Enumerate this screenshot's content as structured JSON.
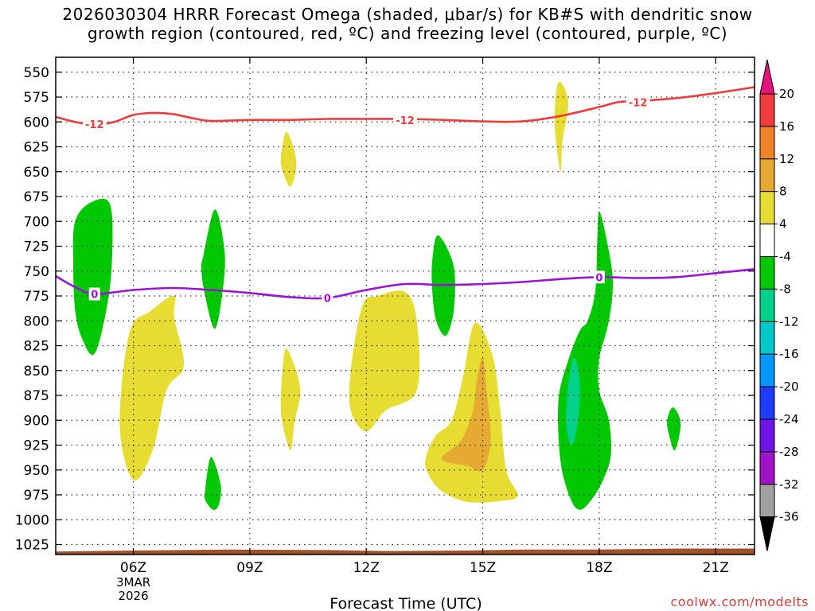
{
  "title": {
    "line1": "2026030304 HRRR Forecast Omega (shaded, μbar/s) for KB#S with dendritic snow",
    "line2": "growth region (contoured, red, ºC) and freezing level (contoured, purple, ºC)"
  },
  "credit": "coolwx.com/modelts",
  "colors": {
    "dgz": "#ee3b3b",
    "freezing": "#9b14d1",
    "terrain": "#a0522d",
    "grid": "#333333"
  },
  "chart_data": {
    "type": "heatmap",
    "title": "2026030304 HRRR Forecast Omega (shaded, μbar/s) for KB#S with dendritic snow growth region (contoured, red, ºC) and freezing level (contoured, purple, ºC)",
    "xlabel": "Forecast Time (UTC)",
    "ylabel": "",
    "x_range_hours": [
      4,
      22
    ],
    "y_range_hpa": [
      535,
      1035
    ],
    "y_ticks": [
      550,
      575,
      600,
      625,
      650,
      675,
      700,
      725,
      750,
      775,
      800,
      825,
      850,
      875,
      900,
      925,
      950,
      975,
      1000,
      1025
    ],
    "x_ticks": [
      {
        "hour": 6,
        "label": "06Z",
        "sub1": "3MAR",
        "sub2": "2026"
      },
      {
        "hour": 9,
        "label": "09Z"
      },
      {
        "hour": 12,
        "label": "12Z"
      },
      {
        "hour": 15,
        "label": "15Z"
      },
      {
        "hour": 18,
        "label": "18Z"
      },
      {
        "hour": 21,
        "label": "21Z"
      }
    ],
    "colorbar": {
      "levels": [
        20,
        16,
        12,
        8,
        4,
        -4,
        -8,
        -12,
        -16,
        -20,
        -24,
        -28,
        -32,
        -36
      ],
      "bin_colors": [
        "#f03c3c",
        "#f08228",
        "#e6aa32",
        "#e6dc32",
        "#ffffff",
        "#00c800",
        "#00d28c",
        "#00c8c8",
        "#0096ff",
        "#1e3cff",
        "#6e14e6",
        "#a014c8",
        "#a0a0a0"
      ],
      "top_arrow_color": "#e6147a",
      "bottom_arrow_color": "#000000"
    },
    "shading_colors": {
      "yellow": "#e6dc32",
      "orange": "#e6aa32",
      "green": "#00c800",
      "teal": "#00d28c"
    },
    "shaded_regions": [
      {
        "color": "green",
        "points": [
          [
            4.5,
            700
          ],
          [
            4.9,
            681
          ],
          [
            5.4,
            683
          ],
          [
            5.45,
            740
          ],
          [
            5.3,
            790
          ],
          [
            5.0,
            833
          ],
          [
            4.7,
            820
          ],
          [
            4.5,
            790
          ],
          [
            4.45,
            740
          ]
        ]
      },
      {
        "color": "green",
        "points": [
          [
            7.8,
            735
          ],
          [
            8.1,
            688
          ],
          [
            8.35,
            730
          ],
          [
            8.3,
            770
          ],
          [
            8.1,
            808
          ],
          [
            7.85,
            775
          ],
          [
            7.75,
            748
          ]
        ]
      },
      {
        "color": "green",
        "points": [
          [
            7.85,
            970
          ],
          [
            8.0,
            937
          ],
          [
            8.25,
            965
          ],
          [
            8.2,
            985
          ],
          [
            8.05,
            990
          ],
          [
            7.85,
            980
          ]
        ]
      },
      {
        "color": "green",
        "points": [
          [
            13.7,
            740
          ],
          [
            13.85,
            714
          ],
          [
            14.25,
            745
          ],
          [
            14.25,
            790
          ],
          [
            14.05,
            815
          ],
          [
            13.8,
            800
          ],
          [
            13.7,
            770
          ]
        ]
      },
      {
        "color": "green",
        "points": [
          [
            17.2,
            840
          ],
          [
            17.5,
            810
          ],
          [
            17.7,
            800
          ],
          [
            17.9,
            770
          ],
          [
            17.95,
            720
          ],
          [
            18.0,
            690
          ],
          [
            18.2,
            720
          ],
          [
            18.35,
            760
          ],
          [
            18.25,
            800
          ],
          [
            18.0,
            838
          ],
          [
            18.0,
            870
          ],
          [
            18.25,
            900
          ],
          [
            18.3,
            935
          ],
          [
            18.1,
            960
          ],
          [
            17.8,
            980
          ],
          [
            17.5,
            990
          ],
          [
            17.25,
            978
          ],
          [
            17.0,
            940
          ],
          [
            16.95,
            880
          ]
        ]
      },
      {
        "color": "green",
        "points": [
          [
            19.75,
            900
          ],
          [
            19.9,
            887
          ],
          [
            20.1,
            903
          ],
          [
            19.95,
            930
          ],
          [
            19.8,
            915
          ]
        ]
      },
      {
        "color": "teal",
        "points": [
          [
            17.2,
            865
          ],
          [
            17.35,
            837
          ],
          [
            17.5,
            862
          ],
          [
            17.45,
            900
          ],
          [
            17.3,
            925
          ],
          [
            17.15,
            905
          ]
        ]
      },
      {
        "color": "yellow",
        "points": [
          [
            5.9,
            812
          ],
          [
            6.45,
            790
          ],
          [
            7.05,
            775
          ],
          [
            7.05,
            797
          ],
          [
            7.3,
            845
          ],
          [
            6.85,
            870
          ],
          [
            6.5,
            930
          ],
          [
            6.0,
            960
          ],
          [
            5.65,
            905
          ]
        ]
      },
      {
        "color": "yellow",
        "points": [
          [
            9.8,
            635
          ],
          [
            9.95,
            610
          ],
          [
            10.2,
            640
          ],
          [
            10.05,
            665
          ],
          [
            9.85,
            650
          ]
        ]
      },
      {
        "color": "yellow",
        "points": [
          [
            9.8,
            880
          ],
          [
            9.9,
            830
          ],
          [
            10.1,
            840
          ],
          [
            10.3,
            870
          ],
          [
            10.15,
            902
          ],
          [
            10.05,
            930
          ],
          [
            9.85,
            905
          ]
        ]
      },
      {
        "color": "yellow",
        "points": [
          [
            11.6,
            850
          ],
          [
            11.9,
            785
          ],
          [
            12.3,
            775
          ],
          [
            13.0,
            771
          ],
          [
            13.3,
            800
          ],
          [
            13.3,
            870
          ],
          [
            12.5,
            890
          ],
          [
            12.0,
            911
          ],
          [
            11.6,
            890
          ]
        ]
      },
      {
        "color": "yellow",
        "points": [
          [
            13.55,
            935
          ],
          [
            13.8,
            915
          ],
          [
            14.2,
            900
          ],
          [
            14.5,
            855
          ],
          [
            14.8,
            802
          ],
          [
            15.25,
            835
          ],
          [
            15.45,
            890
          ],
          [
            15.6,
            950
          ],
          [
            15.9,
            975
          ],
          [
            15.5,
            981
          ],
          [
            14.6,
            982
          ],
          [
            13.9,
            970
          ],
          [
            13.55,
            950
          ]
        ]
      },
      {
        "color": "yellow",
        "points": [
          [
            16.85,
            600
          ],
          [
            16.95,
            560
          ],
          [
            17.2,
            580
          ],
          [
            17.05,
            620
          ],
          [
            17.0,
            650
          ]
        ]
      },
      {
        "color": "orange",
        "points": [
          [
            14.0,
            935
          ],
          [
            14.45,
            920
          ],
          [
            14.75,
            890
          ],
          [
            14.85,
            860
          ],
          [
            15.0,
            837
          ],
          [
            15.1,
            870
          ],
          [
            15.2,
            920
          ],
          [
            15.0,
            950
          ],
          [
            14.6,
            946
          ],
          [
            14.0,
            941
          ]
        ]
      }
    ],
    "terrain": {
      "color": "terrain",
      "points": [
        [
          4.0,
          1037
        ],
        [
          4.0,
          1032
        ],
        [
          6.0,
          1031
        ],
        [
          8.5,
          1030
        ],
        [
          11.0,
          1030.5
        ],
        [
          12.5,
          1031.5
        ],
        [
          14.5,
          1031
        ],
        [
          16.0,
          1030
        ],
        [
          18.0,
          1030
        ],
        [
          20.0,
          1029
        ],
        [
          22.0,
          1029
        ],
        [
          22.0,
          1037
        ]
      ]
    },
    "contours": [
      {
        "name": "dendritic-growth-minus12",
        "color": "dgz",
        "label": "-12",
        "label_positions": [
          [
            5.0,
            602
          ],
          [
            13.0,
            598
          ],
          [
            19.0,
            580
          ]
        ],
        "points": [
          [
            4.0,
            595
          ],
          [
            4.5,
            600
          ],
          [
            5.0,
            603
          ],
          [
            5.5,
            600
          ],
          [
            6.0,
            593
          ],
          [
            6.5,
            591
          ],
          [
            7.0,
            592
          ],
          [
            7.5,
            596
          ],
          [
            8.0,
            599
          ],
          [
            9.0,
            598
          ],
          [
            10.0,
            598
          ],
          [
            11.0,
            597
          ],
          [
            12.0,
            597
          ],
          [
            13.0,
            597
          ],
          [
            14.0,
            598
          ],
          [
            15.0,
            599.5
          ],
          [
            16.0,
            599.5
          ],
          [
            17.0,
            594
          ],
          [
            18.0,
            585
          ],
          [
            18.5,
            580
          ],
          [
            19.0,
            579
          ],
          [
            20.0,
            576
          ],
          [
            21.0,
            571
          ],
          [
            22.0,
            565
          ]
        ]
      },
      {
        "name": "freezing-level-0",
        "color": "freezing",
        "label": "0",
        "label_positions": [
          [
            5.0,
            773
          ],
          [
            11.0,
            777
          ],
          [
            18.0,
            756
          ]
        ],
        "points": [
          [
            4.0,
            755
          ],
          [
            4.5,
            766
          ],
          [
            5.0,
            773
          ],
          [
            6.0,
            769
          ],
          [
            7.0,
            767
          ],
          [
            8.0,
            769
          ],
          [
            9.0,
            772
          ],
          [
            10.0,
            776
          ],
          [
            11.0,
            777
          ],
          [
            12.0,
            769
          ],
          [
            13.0,
            763
          ],
          [
            14.0,
            764
          ],
          [
            15.0,
            763
          ],
          [
            16.0,
            761
          ],
          [
            17.0,
            758
          ],
          [
            18.0,
            756
          ],
          [
            19.0,
            757
          ],
          [
            20.0,
            756
          ],
          [
            21.0,
            752
          ],
          [
            22.0,
            748
          ]
        ]
      }
    ]
  }
}
